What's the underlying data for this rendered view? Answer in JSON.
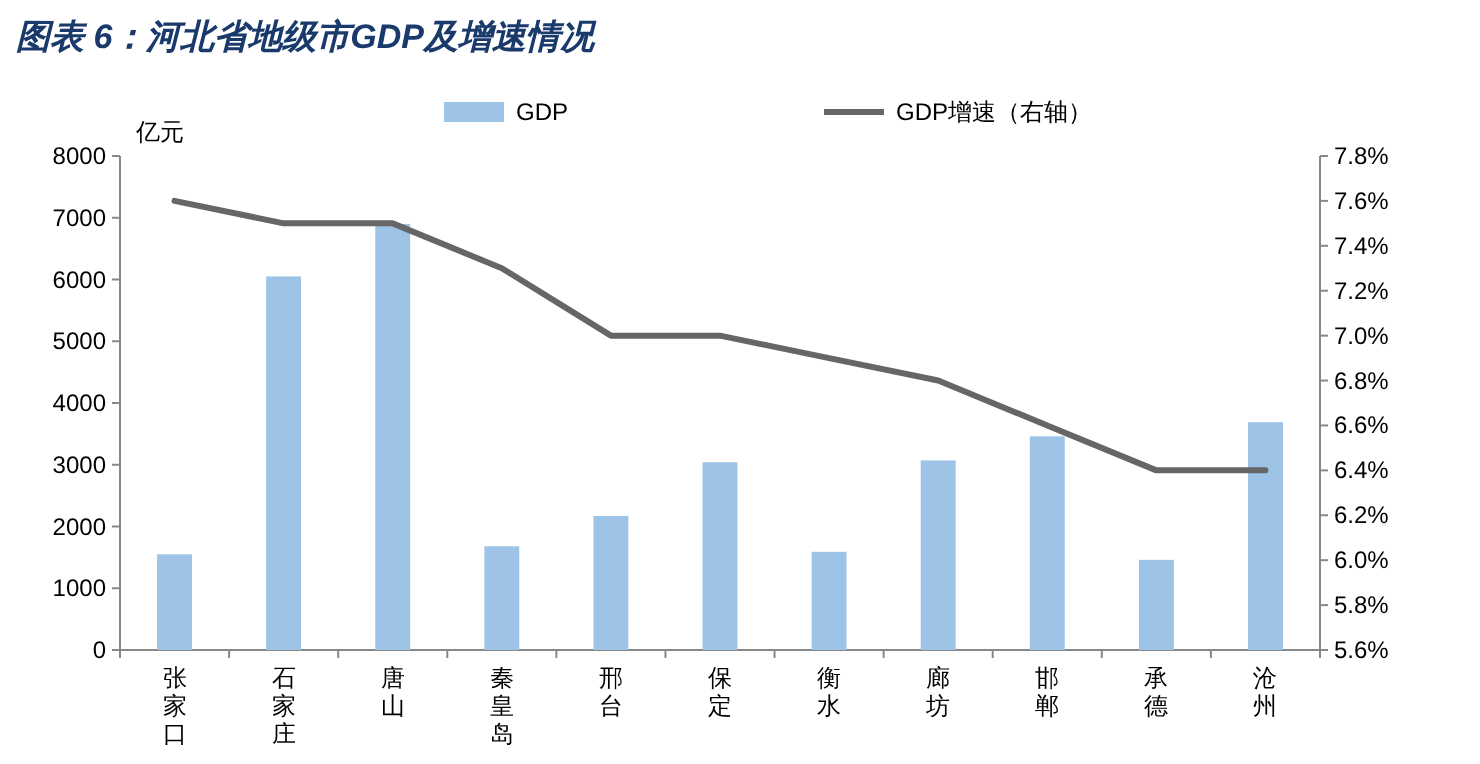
{
  "chart_data": {
    "type": "bar",
    "title": "图表 6：河北省地级市GDP及增速情况",
    "ylabel": "亿元",
    "categories": [
      "张家口",
      "石家庄",
      "唐山",
      "秦皇岛",
      "邢台",
      "保定",
      "衡水",
      "廊坊",
      "邯郸",
      "承德",
      "沧州"
    ],
    "series": [
      {
        "name": "GDP",
        "type": "bar",
        "color": "#9dc3e6",
        "values": [
          1550,
          6050,
          6900,
          1680,
          2170,
          3040,
          1590,
          3070,
          3460,
          1460,
          3690
        ]
      },
      {
        "name": "GDP增速（右轴）",
        "type": "line",
        "axis": "y2",
        "color": "#666666",
        "values": [
          7.6,
          7.5,
          7.5,
          7.3,
          7.0,
          7.0,
          6.9,
          6.8,
          6.6,
          6.4,
          6.4
        ]
      }
    ],
    "ylim": [
      0,
      8000
    ],
    "yticks": [
      0,
      1000,
      2000,
      3000,
      4000,
      5000,
      6000,
      7000,
      8000
    ],
    "y2lim": [
      5.6,
      7.8
    ],
    "y2ticks": [
      {
        "value": 5.6,
        "label": "5.6%"
      },
      {
        "value": 5.8,
        "label": "5.8%"
      },
      {
        "value": 6.0,
        "label": "6.0%"
      },
      {
        "value": 6.2,
        "label": "6.2%"
      },
      {
        "value": 6.4,
        "label": "6.4%"
      },
      {
        "value": 6.6,
        "label": "6.6%"
      },
      {
        "value": 6.8,
        "label": "6.8%"
      },
      {
        "value": 7.0,
        "label": "7.0%"
      },
      {
        "value": 7.2,
        "label": "7.2%"
      },
      {
        "value": 7.4,
        "label": "7.4%"
      },
      {
        "value": 7.6,
        "label": "7.6%"
      },
      {
        "value": 7.8,
        "label": "7.8%"
      }
    ],
    "legend": "top",
    "grid": false
  }
}
